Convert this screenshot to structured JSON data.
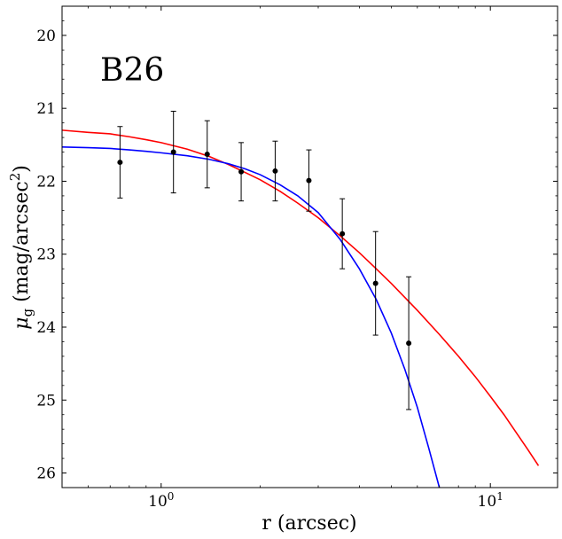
{
  "chart_data": {
    "type": "scatter",
    "annotation": "B26",
    "xlabel": "r (arcsec)",
    "ylabel_main": "μ",
    "ylabel_sub": "g",
    "ylabel_rest": " (mag/arcsec",
    "ylabel_sup": "2",
    "ylabel_close": ")",
    "xscale": "log",
    "xlim": [
      0.5,
      16
    ],
    "ylim": [
      26.2,
      19.6
    ],
    "y_inverted": true,
    "grid": false,
    "x_major_ticks": [
      {
        "value": 1,
        "base": "10",
        "exp": "0"
      },
      {
        "value": 10,
        "base": "10",
        "exp": "1"
      }
    ],
    "x_minor_ticks": [
      0.5,
      0.6,
      0.7,
      0.8,
      0.9,
      2,
      3,
      4,
      5,
      6,
      7,
      8,
      9
    ],
    "y_ticks": [
      {
        "value": 20,
        "label": "20"
      },
      {
        "value": 21,
        "label": "21"
      },
      {
        "value": 22,
        "label": "22"
      },
      {
        "value": 23,
        "label": "23"
      },
      {
        "value": 24,
        "label": "24"
      },
      {
        "value": 25,
        "label": "25"
      },
      {
        "value": 26,
        "label": "26"
      }
    ],
    "y_minor_step": 0.2,
    "points": [
      {
        "x": 0.75,
        "y": 21.74,
        "yerr": 0.49
      },
      {
        "x": 1.09,
        "y": 21.6,
        "yerr": 0.56
      },
      {
        "x": 1.38,
        "y": 21.63,
        "yerr": 0.46
      },
      {
        "x": 1.75,
        "y": 21.87,
        "yerr": 0.4
      },
      {
        "x": 2.22,
        "y": 21.86,
        "yerr": 0.41
      },
      {
        "x": 2.81,
        "y": 21.99,
        "yerr": 0.42
      },
      {
        "x": 3.55,
        "y": 22.72,
        "yerr": 0.48
      },
      {
        "x": 4.48,
        "y": 23.4,
        "yerr": 0.71
      },
      {
        "x": 5.65,
        "y": 24.22,
        "yerr": 0.91
      }
    ],
    "series": [
      {
        "color": "#ff0000",
        "x": [
          0.5,
          0.6,
          0.7,
          0.8,
          0.9,
          1.0,
          1.2,
          1.4,
          1.6,
          1.8,
          2.0,
          2.3,
          2.6,
          3.0,
          3.5,
          4.0,
          4.5,
          5.0,
          6.0,
          7.0,
          8.0,
          9.0,
          10.0,
          11.0,
          12.0,
          13.0,
          14.0
        ],
        "y": [
          21.3,
          21.33,
          21.35,
          21.39,
          21.43,
          21.47,
          21.56,
          21.66,
          21.77,
          21.88,
          21.98,
          22.14,
          22.3,
          22.5,
          22.75,
          22.98,
          23.2,
          23.4,
          23.77,
          24.1,
          24.4,
          24.68,
          24.95,
          25.2,
          25.45,
          25.68,
          25.9
        ]
      },
      {
        "color": "#0000ff",
        "x": [
          0.5,
          0.6,
          0.7,
          0.8,
          0.9,
          1.0,
          1.2,
          1.4,
          1.6,
          1.8,
          2.0,
          2.3,
          2.6,
          3.0,
          3.5,
          4.0,
          4.5,
          5.0,
          5.5,
          6.0,
          6.5,
          7.0,
          7.2
        ],
        "y": [
          21.53,
          21.54,
          21.55,
          21.57,
          21.59,
          21.61,
          21.65,
          21.7,
          21.76,
          21.83,
          21.91,
          22.05,
          22.2,
          22.43,
          22.8,
          23.2,
          23.62,
          24.08,
          24.58,
          25.1,
          25.66,
          26.2,
          26.4
        ]
      }
    ]
  }
}
